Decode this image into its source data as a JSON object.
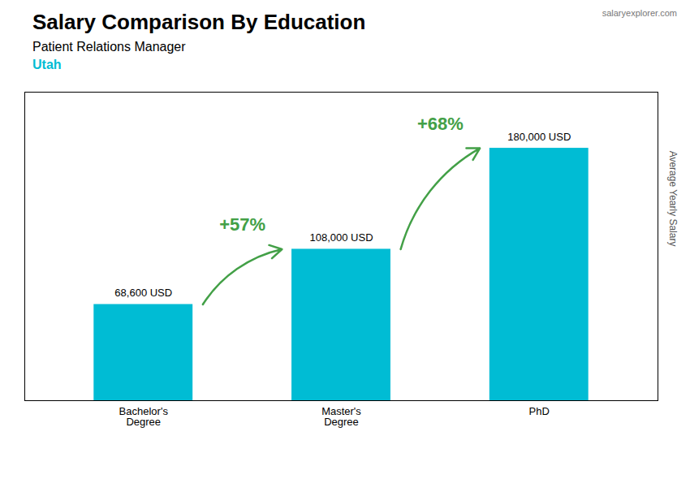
{
  "chart_data": {
    "type": "bar",
    "title": "Salary Comparison By Education",
    "subtitle": "Patient Relations Manager",
    "annotations": [
      "Utah",
      "salaryexplorer.com",
      "+57%",
      "+68%"
    ],
    "ylabel": "Average Yearly Salary",
    "categories": [
      "Bachelor's\nDegree",
      "Master's\nDegree",
      "PhD"
    ],
    "values": [
      68600,
      108000,
      180000
    ],
    "value_labels": [
      "68,600 USD",
      "108,000 USD",
      "180,000 USD"
    ],
    "data_labels": true,
    "color": "#00bcd4",
    "ylim": [
      0,
      220000
    ],
    "tick_labels": "x",
    "grid": false
  }
}
